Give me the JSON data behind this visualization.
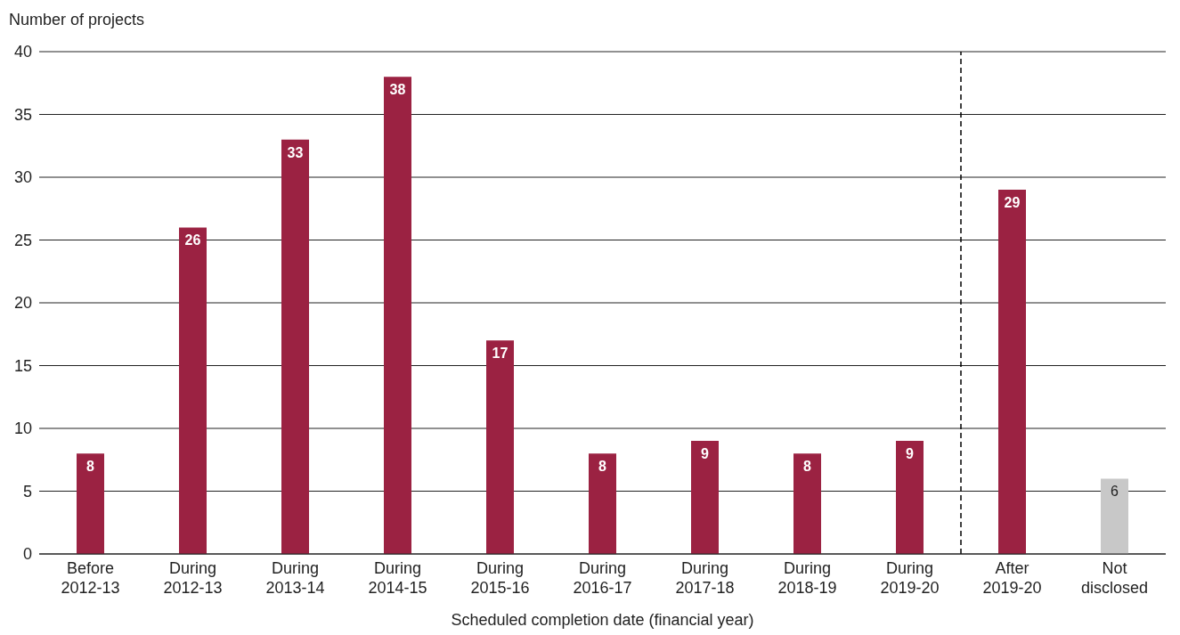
{
  "chart_data": {
    "type": "bar",
    "ylabel": "Number of projects",
    "xlabel": "Scheduled completion date (financial year)",
    "categories": [
      "Before 2012-13",
      "During 2012-13",
      "During 2013-14",
      "During 2014-15",
      "During 2015-16",
      "During 2016-17",
      "During 2017-18",
      "During 2018-19",
      "During 2019-20",
      "After 2019-20",
      "Not disclosed"
    ],
    "values": [
      8,
      26,
      33,
      38,
      17,
      8,
      9,
      8,
      9,
      29,
      6
    ],
    "colors": [
      "#9b2242",
      "#9b2242",
      "#9b2242",
      "#9b2242",
      "#9b2242",
      "#9b2242",
      "#9b2242",
      "#9b2242",
      "#9b2242",
      "#9b2242",
      "#c8c8c8"
    ],
    "ylim": [
      0,
      40
    ],
    "yticks": [
      0,
      5,
      10,
      15,
      20,
      25,
      30,
      35,
      40
    ],
    "grid": "y",
    "data_labels": true,
    "ref_lines": [
      {
        "axis": "x",
        "value": "After 2019-20",
        "line_style": "dashed",
        "color": "#000000"
      }
    ]
  }
}
